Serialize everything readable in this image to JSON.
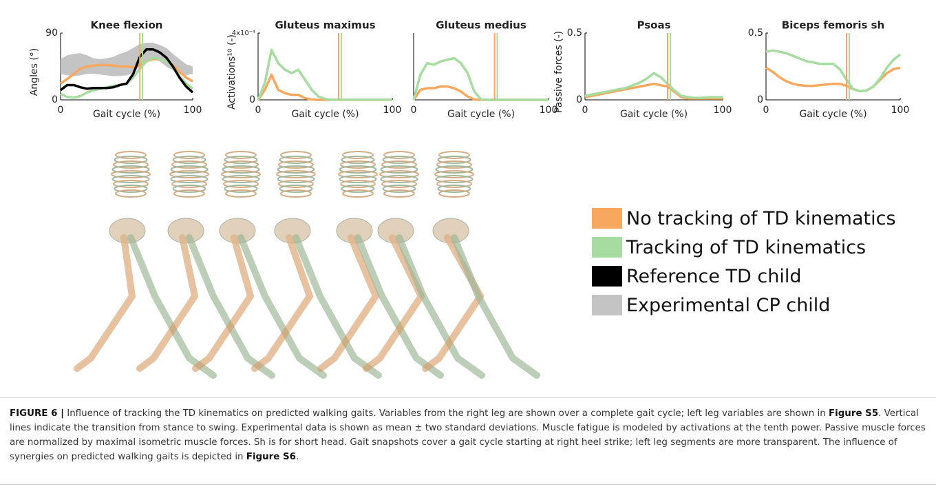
{
  "chart_data": [
    {
      "type": "line",
      "title": "Knee flexion",
      "ylabel": "Angles (°)",
      "xlabel": "Gait cycle (%)",
      "x": [
        0,
        5,
        10,
        15,
        20,
        25,
        30,
        35,
        40,
        45,
        50,
        55,
        60,
        65,
        70,
        75,
        80,
        85,
        90,
        95,
        100
      ],
      "xlim": [
        0,
        100
      ],
      "xticks": [
        0,
        100
      ],
      "ylim": [
        0,
        90
      ],
      "yticks": [
        0,
        90
      ],
      "series": [
        {
          "name": "No tracking of TD kinematics",
          "color": "#f7a85e",
          "values": [
            22,
            28,
            35,
            42,
            45,
            46,
            47,
            47,
            46,
            45,
            45,
            44,
            47,
            52,
            55,
            55,
            52,
            47,
            38,
            30,
            25
          ]
        },
        {
          "name": "Tracking of TD kinematics",
          "color": "#a6dca0",
          "values": [
            8,
            4,
            3,
            5,
            10,
            13,
            15,
            17,
            19,
            20,
            22,
            30,
            42,
            52,
            57,
            55,
            52,
            45,
            32,
            22,
            15
          ]
        },
        {
          "name": "Reference TD child",
          "color": "#000000",
          "values": [
            13,
            20,
            20,
            17,
            15,
            16,
            16,
            16,
            17,
            20,
            22,
            35,
            58,
            68,
            68,
            64,
            57,
            45,
            30,
            18,
            10
          ]
        },
        {
          "name": "Experimental CP child",
          "color": "#c4c4c4",
          "upper": [
            55,
            60,
            62,
            63,
            60,
            56,
            55,
            56,
            58,
            62,
            65,
            70,
            75,
            77,
            77,
            74,
            70,
            62,
            55,
            48,
            45
          ],
          "lower": [
            35,
            33,
            32,
            33,
            35,
            35,
            34,
            33,
            32,
            32,
            33,
            36,
            45,
            52,
            55,
            52,
            45,
            40,
            35,
            33,
            35
          ]
        }
      ],
      "vlines": [
        {
          "x": 60,
          "color": "#f7a85e"
        },
        {
          "x": 62,
          "color": "#a6dca0"
        }
      ]
    },
    {
      "type": "line",
      "title": "Gluteus maximus",
      "ylabel": "Activations¹⁰ (-)",
      "xlabel": "Gait cycle (%)",
      "x": [
        0,
        5,
        10,
        15,
        20,
        25,
        30,
        35,
        40,
        45,
        50,
        55,
        60,
        65,
        70,
        75,
        80,
        85,
        90,
        95,
        100
      ],
      "xlim": [
        0,
        100
      ],
      "xticks": [
        0,
        100
      ],
      "ylim": [
        0,
        0.0004
      ],
      "yticks": [
        0,
        {
          "value": 0.0004,
          "label": "4x10⁻⁴"
        }
      ],
      "series": [
        {
          "color": "#f7a85e",
          "values": [
            0,
            6e-05,
            0.00015,
            6e-05,
            4e-05,
            3e-05,
            3e-05,
            1e-05,
            2e-06,
            0,
            0,
            0,
            0,
            0,
            0,
            0,
            0,
            0,
            0,
            0,
            0
          ]
        },
        {
          "color": "#a6dca0",
          "values": [
            0,
            0.0001,
            0.0003,
            0.00022,
            0.00018,
            0.00016,
            0.00018,
            0.00012,
            6e-05,
            2e-05,
            5e-06,
            1e-06,
            1e-06,
            1e-06,
            1e-06,
            1e-06,
            1e-06,
            1e-06,
            1e-06,
            1e-06,
            1e-06
          ]
        }
      ],
      "vlines": [
        {
          "x": 60,
          "color": "#f7a85e"
        },
        {
          "x": 62,
          "color": "#a6dca0"
        }
      ]
    },
    {
      "type": "line",
      "title": "Gluteus medius",
      "xlabel": "Gait cycle (%)",
      "x": [
        0,
        5,
        10,
        15,
        20,
        25,
        30,
        35,
        40,
        45,
        50,
        55,
        60,
        65,
        70,
        75,
        80,
        85,
        90,
        95,
        100
      ],
      "xlim": [
        0,
        100
      ],
      "xticks": [
        0,
        100
      ],
      "ylim": [
        0,
        0.0004
      ],
      "series": [
        {
          "color": "#f7a85e",
          "values": [
            0,
            6e-05,
            7e-05,
            7e-05,
            8e-05,
            8e-05,
            7e-05,
            5e-05,
            2e-05,
            2e-06,
            0,
            0,
            0,
            0,
            0,
            0,
            0,
            0,
            0,
            0,
            0
          ]
        },
        {
          "color": "#a6dca0",
          "values": [
            0,
            0.00015,
            0.00022,
            0.00021,
            0.00023,
            0.00024,
            0.00025,
            0.00022,
            0.00016,
            5e-05,
            2e-06,
            0,
            0,
            0,
            0,
            0,
            0,
            0,
            0,
            0,
            0
          ]
        }
      ],
      "vlines": [
        {
          "x": 60,
          "color": "#f7a85e"
        },
        {
          "x": 62,
          "color": "#a6dca0"
        }
      ]
    },
    {
      "type": "line",
      "title": "Psoas",
      "ylabel": "Passive forces (-)",
      "xlabel": "Gait cycle (%)",
      "x": [
        0,
        5,
        10,
        15,
        20,
        25,
        30,
        35,
        40,
        45,
        50,
        55,
        60,
        65,
        70,
        75,
        80,
        85,
        90,
        95,
        100
      ],
      "xlim": [
        0,
        100
      ],
      "xticks": [
        0,
        100
      ],
      "ylim": [
        0,
        0.5
      ],
      "yticks": [
        0,
        0.5
      ],
      "series": [
        {
          "color": "#f7a85e",
          "values": [
            0.02,
            0.03,
            0.04,
            0.05,
            0.06,
            0.07,
            0.08,
            0.09,
            0.1,
            0.11,
            0.12,
            0.11,
            0.1,
            0.06,
            0.02,
            0.01,
            0.01,
            0.01,
            0.01,
            0.01,
            0.01
          ]
        },
        {
          "color": "#a6dca0",
          "values": [
            0.03,
            0.04,
            0.05,
            0.06,
            0.07,
            0.08,
            0.09,
            0.11,
            0.13,
            0.16,
            0.2,
            0.17,
            0.12,
            0.07,
            0.03,
            0.02,
            0.015,
            0.015,
            0.02,
            0.02,
            0.02
          ]
        }
      ],
      "vlines": [
        {
          "x": 60,
          "color": "#f7a85e"
        },
        {
          "x": 62,
          "color": "#a6dca0"
        }
      ]
    },
    {
      "type": "line",
      "title": "Biceps femoris sh",
      "xlabel": "Gait cycle (%)",
      "x": [
        0,
        5,
        10,
        15,
        20,
        25,
        30,
        35,
        40,
        45,
        50,
        55,
        60,
        65,
        70,
        75,
        80,
        85,
        90,
        95,
        100
      ],
      "xlim": [
        0,
        100
      ],
      "xticks": [
        0,
        100
      ],
      "ylim": [
        0,
        0.5
      ],
      "yticks": [
        0,
        0.5
      ],
      "series": [
        {
          "color": "#f7a85e",
          "values": [
            0.24,
            0.21,
            0.17,
            0.14,
            0.12,
            0.11,
            0.105,
            0.105,
            0.11,
            0.115,
            0.12,
            0.12,
            0.105,
            0.08,
            0.065,
            0.07,
            0.1,
            0.15,
            0.2,
            0.23,
            0.24
          ]
        },
        {
          "color": "#a6dca0",
          "values": [
            0.36,
            0.37,
            0.36,
            0.35,
            0.33,
            0.31,
            0.29,
            0.28,
            0.27,
            0.27,
            0.27,
            0.23,
            0.15,
            0.08,
            0.065,
            0.07,
            0.1,
            0.16,
            0.24,
            0.3,
            0.34
          ]
        }
      ],
      "vlines": [
        {
          "x": 60,
          "color": "#f7a85e"
        },
        {
          "x": 62,
          "color": "#a6dca0"
        }
      ]
    }
  ],
  "caption": {
    "runs": [
      {
        "text": "FIGURE 6 |",
        "bold": true
      },
      {
        "text": " Influence of tracking the TD kinematics on predicted walking gaits. Variables from the right leg are shown over a complete gait cycle; left leg variables are shown in ",
        "bold": false
      },
      {
        "text": "Figure S5",
        "bold": true
      },
      {
        "text": ". Vertical lines indicate the transition from stance to swing. Experimental data is shown as mean ± two standard deviations. Muscle fatigue is modeled by activations at the tenth power. Passive muscle forces are normalized by maximal isometric muscle forces. Sh is for short head. Gait snapshots cover a gait cycle starting at right heel strike; left leg segments are more transparent. The influence of synergies on predicted walking gaits is depicted in ",
        "bold": false
      },
      {
        "text": "Figure S6",
        "bold": true
      },
      {
        "text": ".",
        "bold": false
      }
    ]
  }
}
